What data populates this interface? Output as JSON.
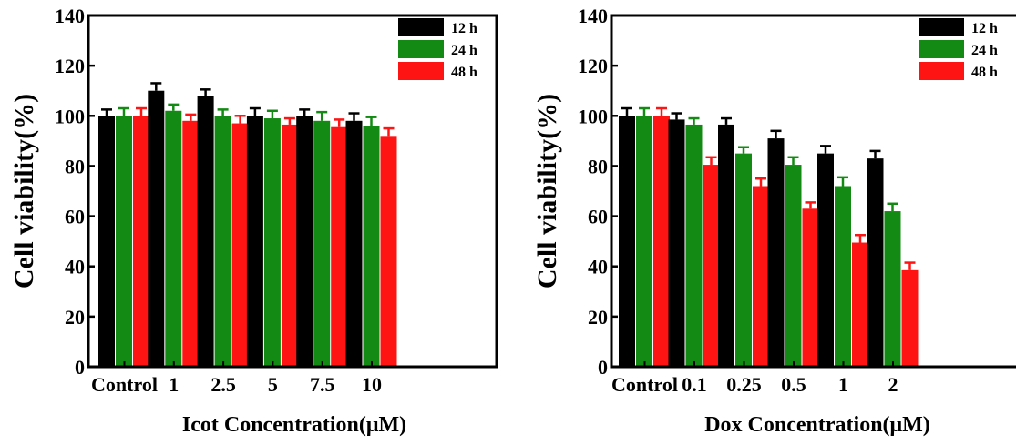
{
  "chart_data": [
    {
      "type": "bar",
      "xlabel": "Icot Concentration(μM)",
      "ylabel": "Cell viability(%)",
      "ylim": [
        0,
        140
      ],
      "yticks": [
        "0",
        "20",
        "40",
        "60",
        "80",
        "100",
        "120",
        "140"
      ],
      "categories": [
        "Control",
        "1",
        "2.5",
        "5",
        "7.5",
        "10"
      ],
      "series": [
        {
          "name": "12 h",
          "color": "#000000",
          "values": [
            100,
            110,
            108,
            100,
            100,
            98
          ],
          "errors": [
            2.5,
            3,
            2.5,
            3,
            2.5,
            3
          ]
        },
        {
          "name": "24 h",
          "color": "#138a13",
          "values": [
            100,
            102,
            100,
            99,
            98,
            96
          ],
          "errors": [
            3,
            2.5,
            2.5,
            3,
            3.5,
            3.5
          ]
        },
        {
          "name": "48 h",
          "color": "#ff1414",
          "values": [
            100,
            98,
            97,
            96.5,
            95.5,
            92
          ],
          "errors": [
            3,
            2.5,
            3,
            2.5,
            3,
            3
          ]
        }
      ],
      "legend": "top-right"
    },
    {
      "type": "bar",
      "xlabel": "Dox Concentration(μM)",
      "ylabel": "Cell viability(%)",
      "ylim": [
        0,
        140
      ],
      "yticks": [
        "0",
        "20",
        "40",
        "60",
        "80",
        "100",
        "120",
        "140"
      ],
      "categories": [
        "Control",
        "0.1",
        "0.25",
        "0.5",
        "1",
        "2"
      ],
      "series": [
        {
          "name": "12 h",
          "color": "#000000",
          "values": [
            100,
            98.5,
            96.5,
            91,
            85,
            83
          ],
          "errors": [
            3,
            2.5,
            2.5,
            3,
            3,
            3
          ]
        },
        {
          "name": "24 h",
          "color": "#138a13",
          "values": [
            100,
            96.5,
            85,
            80.5,
            72,
            62
          ],
          "errors": [
            3,
            2.5,
            2.5,
            3,
            3.5,
            3
          ]
        },
        {
          "name": "48 h",
          "color": "#ff1414",
          "values": [
            100,
            80.5,
            72,
            63,
            49.5,
            38.5
          ],
          "errors": [
            3,
            3,
            3,
            2.5,
            3,
            3
          ]
        }
      ],
      "legend": "top-right"
    }
  ]
}
